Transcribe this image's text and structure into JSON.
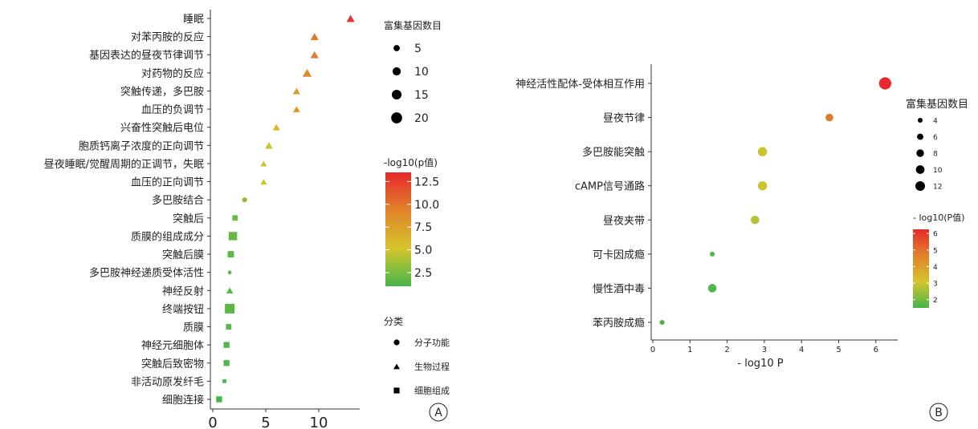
{
  "chart_data": [
    {
      "type": "scatter",
      "panel_label": "A",
      "categories": [
        "睡眠",
        "对苯丙胺的反应",
        "基因表达的昼夜节律调节",
        "对药物的反应",
        "突触传递，多巴胺",
        "血压的负调节",
        "兴奋性突触后电位",
        "胞质钙离子浓度的正向调节",
        "昼夜睡眠/觉醒周期的正调节，失眠",
        "血压的正向调节",
        "多巴胺结合",
        "突触后",
        "质膜的组成成分",
        "突触后膜",
        "多巴胺神经递质受体活性",
        "神经反射",
        "终端按钮",
        "质膜",
        "神经元细胞体",
        "突触后致密物",
        "非活动原发纤毛",
        "细胞连接"
      ],
      "values": [
        13.0,
        9.6,
        9.6,
        8.9,
        7.9,
        7.9,
        6.0,
        5.3,
        4.8,
        4.8,
        3.0,
        2.1,
        1.9,
        1.7,
        1.6,
        1.6,
        1.6,
        1.5,
        1.3,
        1.3,
        1.1,
        0.6
      ],
      "gene_counts": [
        10,
        10,
        10,
        13,
        8,
        7,
        8,
        9,
        6,
        6,
        4,
        5,
        13,
        7,
        2,
        7,
        18,
        5,
        6,
        6,
        2,
        6
      ],
      "category_types": [
        "bp",
        "bp",
        "bp",
        "bp",
        "bp",
        "bp",
        "bp",
        "bp",
        "bp",
        "bp",
        "mf",
        "cc",
        "cc",
        "cc",
        "mf",
        "bp",
        "cc",
        "cc",
        "cc",
        "cc",
        "cc",
        "cc"
      ],
      "xlim": [
        0,
        13.5
      ],
      "xticks": [
        "0",
        "5",
        "10"
      ],
      "xtick_values": [
        0,
        5,
        10
      ],
      "xlabel": "",
      "size_legend": {
        "title": "富集基因数目",
        "items": [
          "5",
          "10",
          "15",
          "20"
        ],
        "values": [
          5,
          10,
          15,
          20
        ]
      },
      "color_legend": {
        "title": "-log10(p值)",
        "ticks": [
          "12.5",
          "10.0",
          "7.5",
          "5.0",
          "2.5"
        ],
        "range": [
          1,
          13.5
        ]
      },
      "shape_legend": {
        "title": "分类",
        "items": [
          "分子功能",
          "生物过程",
          "细胞组成"
        ]
      }
    },
    {
      "type": "scatter",
      "panel_label": "B",
      "categories": [
        "神经活性配体-受体相互作用",
        "昼夜节律",
        "多巴胺能突触",
        "cAMP信号通路",
        "昼夜夹带",
        "可卡因成瘾",
        "慢性酒中毒",
        "苯丙胺成瘾"
      ],
      "values": [
        6.25,
        4.75,
        2.95,
        2.95,
        2.75,
        1.6,
        1.6,
        0.25
      ],
      "gene_counts": [
        13,
        6,
        8,
        8,
        7,
        3,
        7,
        3
      ],
      "xlim": [
        0,
        6.6
      ],
      "xticks": [
        "0",
        "1",
        "2",
        "3",
        "4",
        "5",
        "6"
      ],
      "xtick_values": [
        0,
        1,
        2,
        3,
        4,
        5,
        6
      ],
      "xlabel": "- log10 P",
      "size_legend": {
        "title": "富集基因数目",
        "items": [
          "4",
          "6",
          "8",
          "10",
          "12"
        ],
        "values": [
          4,
          6,
          8,
          10,
          12
        ]
      },
      "color_legend": {
        "title": "- log10(P值)",
        "ticks": [
          "6",
          "5",
          "4",
          "3",
          "2"
        ],
        "range": [
          1.5,
          6.25
        ]
      }
    }
  ],
  "colors": {
    "low": "#44b649",
    "mid": "#d5c52d",
    "midhigh": "#e0842a",
    "high": "#e8282b"
  }
}
